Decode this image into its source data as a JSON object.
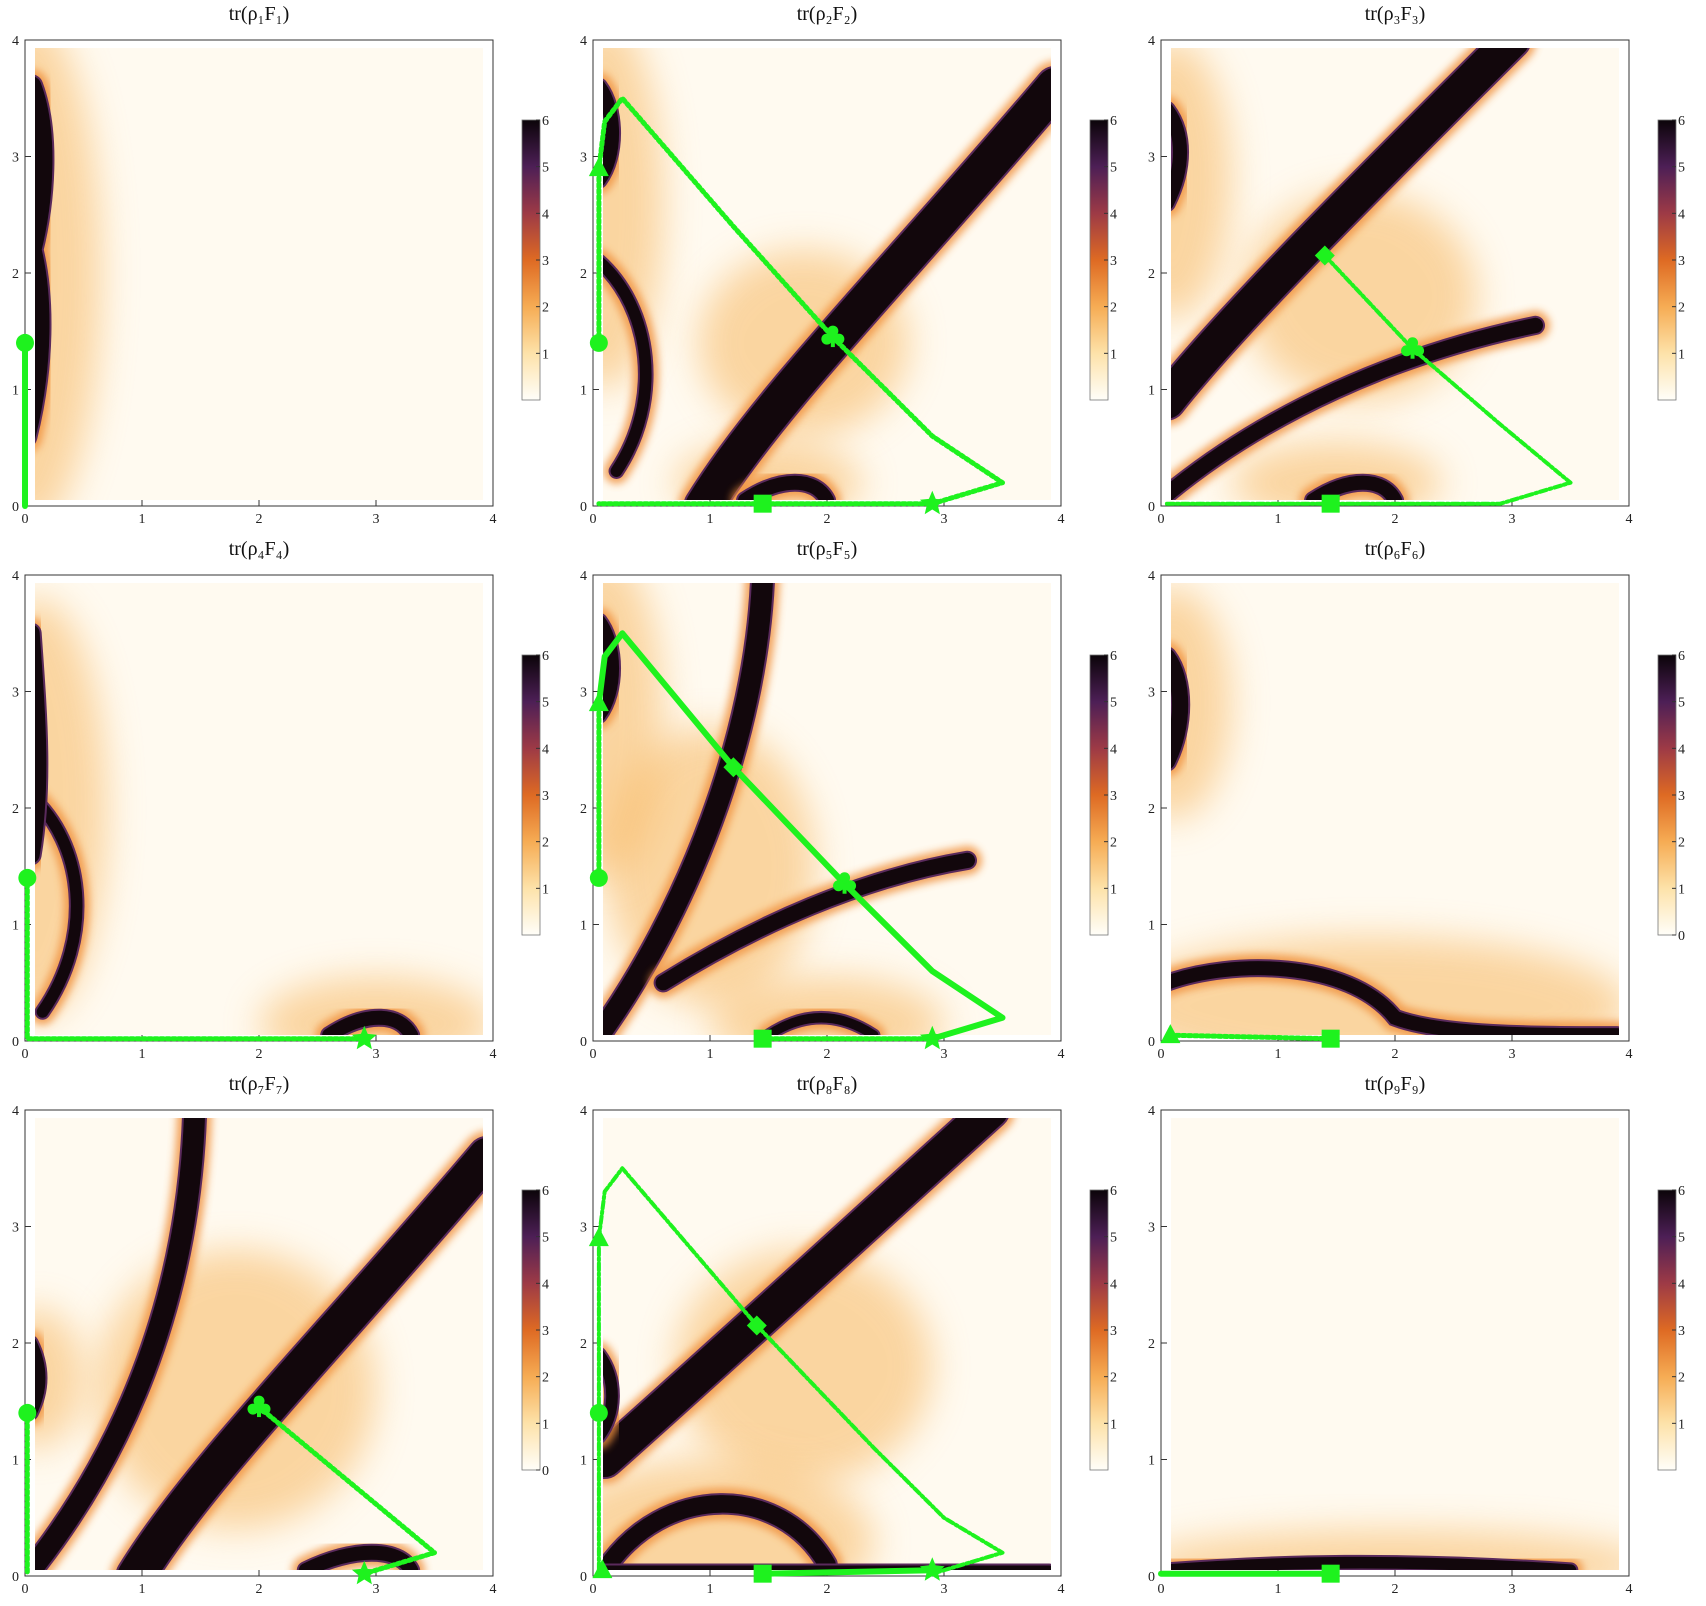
{
  "figure": {
    "layout": "3x3 grid of density plots with colorbars",
    "colors": {
      "background_light": "#fffaf0",
      "band_dark": "#12070c",
      "cmap": [
        "#fffef9",
        "#fde2a9",
        "#f6ac54",
        "#de6a23",
        "#9d3a46",
        "#4d1f56",
        "#0b0409"
      ],
      "path_green": "#1ef21e"
    }
  },
  "chart_data": [
    {
      "type": "heatmap",
      "title": "tr(ρ₁F₁)",
      "x_ticks": [
        "0",
        "1",
        "2",
        "3",
        "4"
      ],
      "y_ticks": [
        "0",
        "1",
        "2",
        "3",
        "4"
      ],
      "xlim": [
        0,
        4
      ],
      "ylim": [
        0,
        4
      ],
      "colorbar": {
        "range": [
          0,
          6
        ],
        "ticks": [
          "1",
          "2",
          "3",
          "4",
          "5",
          "6"
        ]
      },
      "path": {
        "style": "solid",
        "points": [
          [
            0,
            1.4
          ],
          [
            0,
            0
          ]
        ]
      },
      "markers": [
        {
          "shape": "circle",
          "x": 0,
          "y": 1.4
        }
      ]
    },
    {
      "type": "heatmap",
      "title": "tr(ρ₂F₂)",
      "x_ticks": [
        "0",
        "1",
        "2",
        "3",
        "4"
      ],
      "y_ticks": [
        "0",
        "1",
        "2",
        "3",
        "4"
      ],
      "xlim": [
        0,
        4
      ],
      "ylim": [
        0,
        4
      ],
      "colorbar": {
        "range": [
          0,
          6
        ],
        "ticks": [
          "1",
          "2",
          "3",
          "4",
          "5",
          "6"
        ]
      },
      "path": {
        "style": "dotted",
        "points": [
          [
            0.05,
            1.4
          ],
          [
            0.05,
            2.9
          ],
          [
            0.1,
            3.3
          ],
          [
            0.25,
            3.5
          ],
          [
            1.2,
            2.4
          ],
          [
            2.05,
            1.45
          ],
          [
            2.9,
            0.6
          ],
          [
            3.5,
            0.2
          ],
          [
            2.9,
            0.02
          ],
          [
            1.45,
            0.02
          ],
          [
            0.05,
            0.02
          ]
        ]
      },
      "markers": [
        {
          "shape": "circle",
          "x": 0.05,
          "y": 1.4
        },
        {
          "shape": "triangle",
          "x": 0.05,
          "y": 2.9
        },
        {
          "shape": "club",
          "x": 2.05,
          "y": 1.45
        },
        {
          "shape": "square",
          "x": 1.45,
          "y": 0.02
        },
        {
          "shape": "star",
          "x": 2.9,
          "y": 0.02
        }
      ]
    },
    {
      "type": "heatmap",
      "title": "tr(ρ₃F₃)",
      "x_ticks": [
        "0",
        "1",
        "2",
        "3",
        "4"
      ],
      "y_ticks": [
        "0",
        "1",
        "2",
        "3",
        "4"
      ],
      "xlim": [
        0,
        4
      ],
      "ylim": [
        0,
        4
      ],
      "colorbar": {
        "range": [
          0,
          6
        ],
        "ticks": [
          "1",
          "2",
          "3",
          "4",
          "5",
          "6"
        ]
      },
      "path": {
        "style": "dash-dot",
        "points": [
          [
            1.4,
            2.15
          ],
          [
            2.15,
            1.35
          ],
          [
            2.9,
            0.7
          ],
          [
            3.5,
            0.2
          ],
          [
            2.9,
            0.02
          ],
          [
            1.45,
            0.02
          ],
          [
            0.05,
            0.02
          ]
        ]
      },
      "markers": [
        {
          "shape": "diamond",
          "x": 1.4,
          "y": 2.15
        },
        {
          "shape": "club",
          "x": 2.15,
          "y": 1.35
        },
        {
          "shape": "square",
          "x": 1.45,
          "y": 0.02
        }
      ]
    },
    {
      "type": "heatmap",
      "title": "tr(ρ₄F₄)",
      "x_ticks": [
        "0",
        "1",
        "2",
        "3",
        "4"
      ],
      "y_ticks": [
        "0",
        "1",
        "2",
        "3",
        "4"
      ],
      "xlim": [
        0,
        4
      ],
      "ylim": [
        0,
        4
      ],
      "colorbar": {
        "range": [
          0,
          6
        ],
        "ticks": [
          "1",
          "2",
          "3",
          "4",
          "5",
          "6"
        ]
      },
      "path": {
        "style": "dotted",
        "points": [
          [
            0.02,
            1.4
          ],
          [
            0.02,
            0.02
          ],
          [
            2.9,
            0.02
          ]
        ]
      },
      "markers": [
        {
          "shape": "circle",
          "x": 0.02,
          "y": 1.4
        },
        {
          "shape": "star",
          "x": 2.9,
          "y": 0.02
        }
      ]
    },
    {
      "type": "heatmap",
      "title": "tr(ρ₅F₅)",
      "x_ticks": [
        "0",
        "1",
        "2",
        "3",
        "4"
      ],
      "y_ticks": [
        "0",
        "1",
        "2",
        "3",
        "4"
      ],
      "xlim": [
        0,
        4
      ],
      "ylim": [
        0,
        4
      ],
      "colorbar": {
        "range": [
          0,
          6
        ],
        "ticks": [
          "1",
          "2",
          "3",
          "4",
          "5",
          "6"
        ]
      },
      "path": {
        "style": "solid",
        "points": [
          [
            0.05,
            2.9
          ],
          [
            0.1,
            3.3
          ],
          [
            0.25,
            3.5
          ],
          [
            1.2,
            2.35
          ],
          [
            2.15,
            1.35
          ],
          [
            2.9,
            0.6
          ],
          [
            3.5,
            0.2
          ],
          [
            2.9,
            0.02
          ]
        ]
      },
      "path2": {
        "style": "dotted",
        "points": [
          [
            0.05,
            1.4
          ],
          [
            0.05,
            2.9
          ]
        ]
      },
      "path3": {
        "style": "dotted",
        "points": [
          [
            1.45,
            0.02
          ],
          [
            2.9,
            0.02
          ]
        ]
      },
      "markers": [
        {
          "shape": "circle",
          "x": 0.05,
          "y": 1.4
        },
        {
          "shape": "triangle",
          "x": 0.05,
          "y": 2.9
        },
        {
          "shape": "diamond",
          "x": 1.2,
          "y": 2.35
        },
        {
          "shape": "club",
          "x": 2.15,
          "y": 1.35
        },
        {
          "shape": "square",
          "x": 1.45,
          "y": 0.02
        },
        {
          "shape": "star",
          "x": 2.9,
          "y": 0.02
        }
      ]
    },
    {
      "type": "heatmap",
      "title": "tr(ρ₆F₆)",
      "x_ticks": [
        "0",
        "1",
        "2",
        "3",
        "4"
      ],
      "y_ticks": [
        "0",
        "1",
        "2",
        "3",
        "4"
      ],
      "xlim": [
        0,
        4
      ],
      "ylim": [
        0,
        4
      ],
      "colorbar": {
        "range": [
          0,
          6
        ],
        "ticks": [
          "0",
          "1",
          "2",
          "3",
          "4",
          "5",
          "6"
        ]
      },
      "path": {
        "style": "dotted",
        "points": [
          [
            0.08,
            0.05
          ],
          [
            1.45,
            0.02
          ]
        ]
      },
      "markers": [
        {
          "shape": "triangle",
          "x": 0.08,
          "y": 0.05
        },
        {
          "shape": "square",
          "x": 1.45,
          "y": 0.02
        }
      ]
    },
    {
      "type": "heatmap",
      "title": "tr(ρ₇F₇)",
      "x_ticks": [
        "0",
        "1",
        "2",
        "3",
        "4"
      ],
      "y_ticks": [
        "0",
        "1",
        "2",
        "3",
        "4"
      ],
      "xlim": [
        0,
        4
      ],
      "ylim": [
        0,
        4
      ],
      "colorbar": {
        "range": [
          0,
          6
        ],
        "ticks": [
          "0",
          "1",
          "2",
          "3",
          "4",
          "5",
          "6"
        ]
      },
      "path": {
        "style": "dotted",
        "points": [
          [
            2.0,
            1.45
          ],
          [
            2.9,
            0.7
          ],
          [
            3.5,
            0.2
          ],
          [
            2.9,
            0.02
          ]
        ]
      },
      "path2": {
        "style": "dotted",
        "points": [
          [
            0.02,
            1.4
          ],
          [
            0.02,
            0.02
          ]
        ]
      },
      "markers": [
        {
          "shape": "circle",
          "x": 0.02,
          "y": 1.4
        },
        {
          "shape": "club",
          "x": 2.0,
          "y": 1.45
        },
        {
          "shape": "star",
          "x": 2.9,
          "y": 0.02
        }
      ]
    },
    {
      "type": "heatmap",
      "title": "tr(ρ₈F₈)",
      "x_ticks": [
        "0",
        "1",
        "2",
        "3",
        "4"
      ],
      "y_ticks": [
        "0",
        "1",
        "2",
        "3",
        "4"
      ],
      "xlim": [
        0,
        4
      ],
      "ylim": [
        0,
        4
      ],
      "colorbar": {
        "range": [
          0,
          6
        ],
        "ticks": [
          "1",
          "2",
          "3",
          "4",
          "5",
          "6"
        ]
      },
      "path": {
        "style": "dash-dot",
        "points": [
          [
            0.05,
            2.9
          ],
          [
            0.1,
            3.3
          ],
          [
            0.25,
            3.5
          ],
          [
            1.4,
            2.15
          ],
          [
            2.4,
            1.1
          ],
          [
            3.0,
            0.5
          ],
          [
            3.5,
            0.2
          ],
          [
            2.9,
            0.02
          ]
        ]
      },
      "path2": {
        "style": "dash-dot",
        "points": [
          [
            0.05,
            0.05
          ],
          [
            0.05,
            1.4
          ],
          [
            0.05,
            2.9
          ]
        ]
      },
      "path3": {
        "style": "solid",
        "points": [
          [
            1.45,
            0.02
          ],
          [
            2.9,
            0.05
          ]
        ]
      },
      "markers": [
        {
          "shape": "circle",
          "x": 0.05,
          "y": 1.4
        },
        {
          "shape": "triangle",
          "x": 0.05,
          "y": 2.9
        },
        {
          "shape": "triangle",
          "x": 0.08,
          "y": 0.05
        },
        {
          "shape": "diamond",
          "x": 1.4,
          "y": 2.15
        },
        {
          "shape": "square",
          "x": 1.45,
          "y": 0.02
        },
        {
          "shape": "star",
          "x": 2.9,
          "y": 0.05
        }
      ]
    },
    {
      "type": "heatmap",
      "title": "tr(ρ₉F₉)",
      "x_ticks": [
        "0",
        "1",
        "2",
        "3",
        "4"
      ],
      "y_ticks": [
        "0",
        "1",
        "2",
        "3",
        "4"
      ],
      "xlim": [
        0,
        4
      ],
      "ylim": [
        0,
        4
      ],
      "colorbar": {
        "range": [
          0,
          6
        ],
        "ticks": [
          "1",
          "2",
          "3",
          "4",
          "5",
          "6"
        ]
      },
      "path": {
        "style": "solid",
        "points": [
          [
            0,
            0.02
          ],
          [
            1.45,
            0.02
          ]
        ]
      },
      "markers": [
        {
          "shape": "square",
          "x": 1.45,
          "y": 0.02
        }
      ]
    }
  ]
}
